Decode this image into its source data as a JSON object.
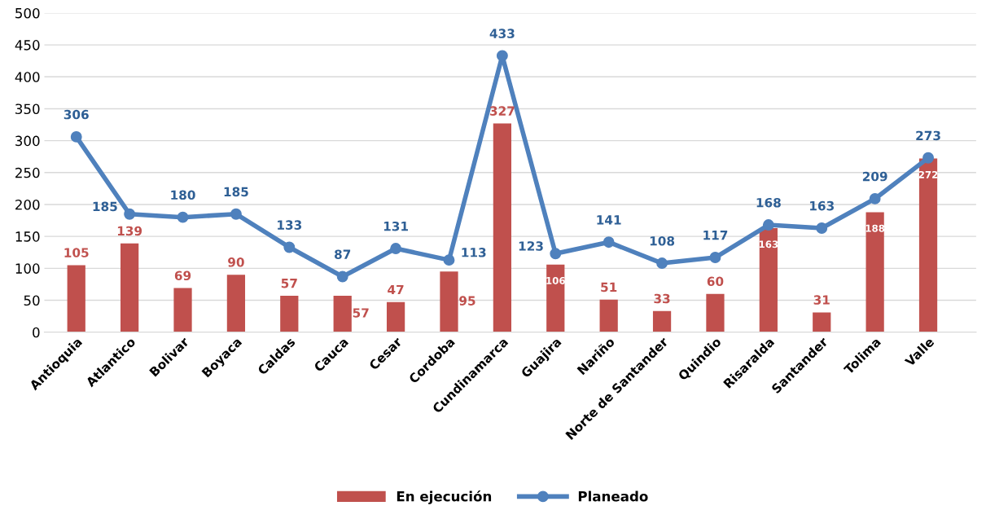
{
  "chart_data": {
    "type": "bar",
    "categories": [
      "Antioquia",
      "Atlantico",
      "Bolivar",
      "Boyaca",
      "Caldas",
      "Cauca",
      "Cesar",
      "Cordoba",
      "Cundinamarca",
      "Guajira",
      "Nariño",
      "Norte de Santander",
      "Quindio",
      "Risaralda",
      "Santander",
      "Tolima",
      "Valle"
    ],
    "series": [
      {
        "name": "En ejecución",
        "color": "#c0504d",
        "values": [
          105,
          139,
          69,
          90,
          57,
          57,
          47,
          95,
          327,
          106,
          51,
          33,
          60,
          163,
          31,
          188,
          272
        ]
      },
      {
        "name": "Planeado",
        "type": "line",
        "color": "#4f81bd",
        "values": [
          306,
          185,
          180,
          185,
          133,
          87,
          131,
          113,
          433,
          123,
          141,
          108,
          117,
          168,
          163,
          209,
          273
        ]
      }
    ],
    "ylim": [
      0,
      500
    ],
    "yticks": [
      0,
      50,
      100,
      150,
      200,
      250,
      300,
      350,
      400,
      450,
      500
    ],
    "grid": "y",
    "legend": "bottom",
    "marker": "circle",
    "line_style": "solid",
    "data_labels": true
  }
}
